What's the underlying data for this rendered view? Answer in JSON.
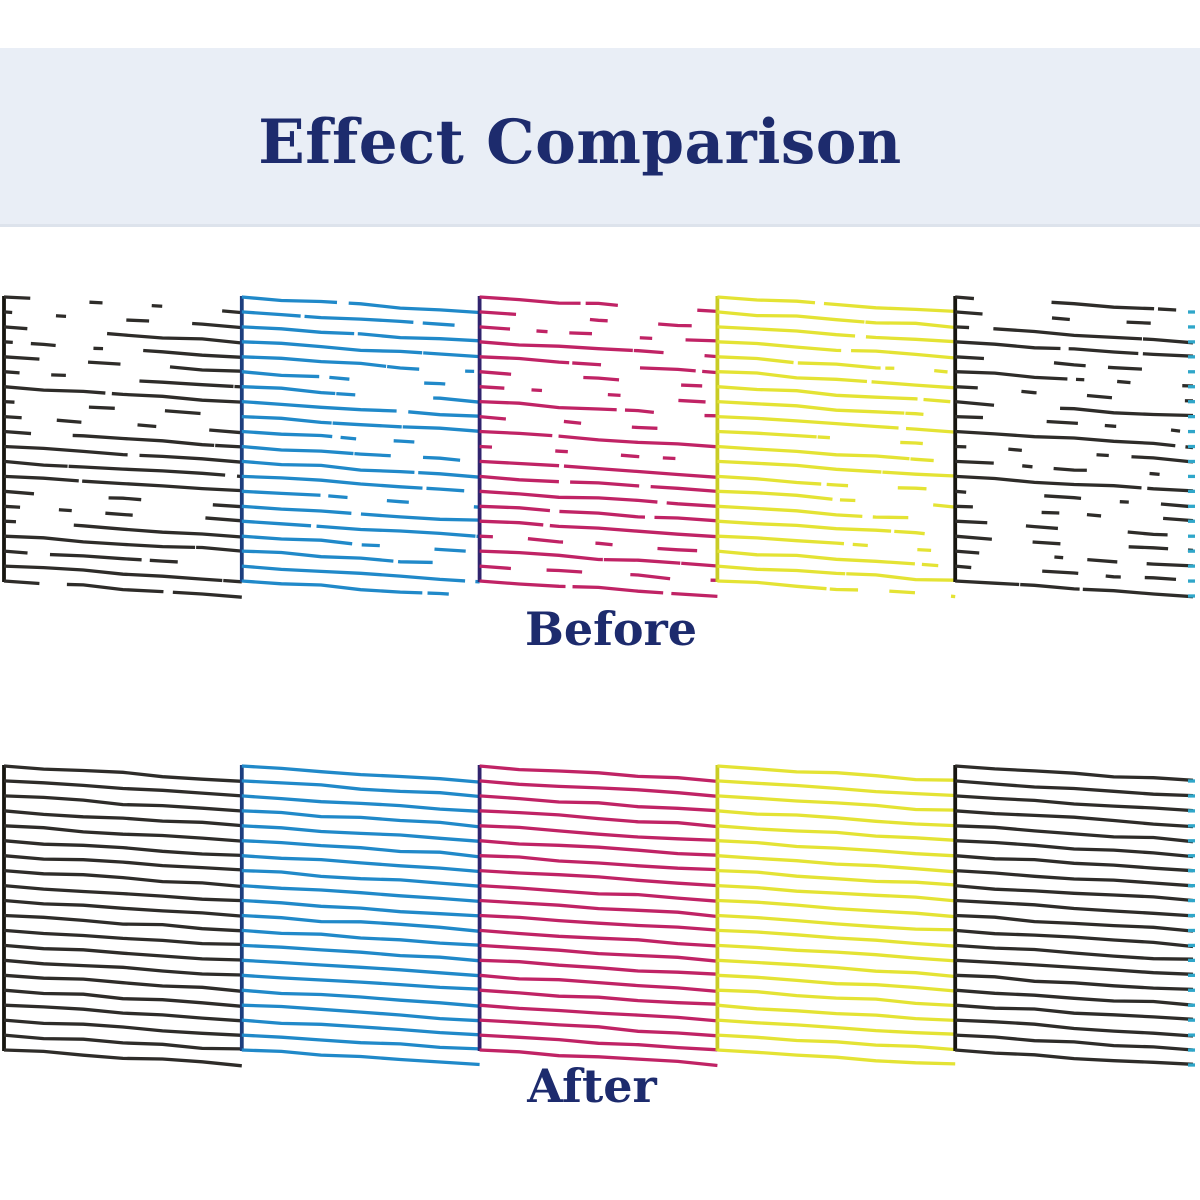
{
  "header": {
    "title": "Effect Comparison",
    "band_color": "#e9eef6",
    "band_edge_color": "#dde3ec",
    "title_color": "#1d2b6d"
  },
  "sections": {
    "before": {
      "label": "Before"
    },
    "after": {
      "label": "After"
    },
    "label_color": "#1d2b6d"
  },
  "pattern": {
    "kind": "printer-nozzle-check-stripes",
    "band_order": [
      "black",
      "cyan",
      "magenta",
      "yellow",
      "black"
    ],
    "inks": {
      "black": {
        "stroke": "#2e2c29",
        "edge": "#16150f"
      },
      "cyan": {
        "stroke": "#2089c9",
        "edge": "#1c3e7e"
      },
      "magenta": {
        "stroke": "#c02365",
        "edge": "#30246e"
      },
      "yellow": {
        "stroke": "#e4e334",
        "edge": "#c9cc25"
      }
    },
    "tick_color": "#2fa6c9",
    "rows": [
      {
        "name": "before",
        "broken": true
      },
      {
        "name": "after",
        "broken": false
      }
    ]
  }
}
